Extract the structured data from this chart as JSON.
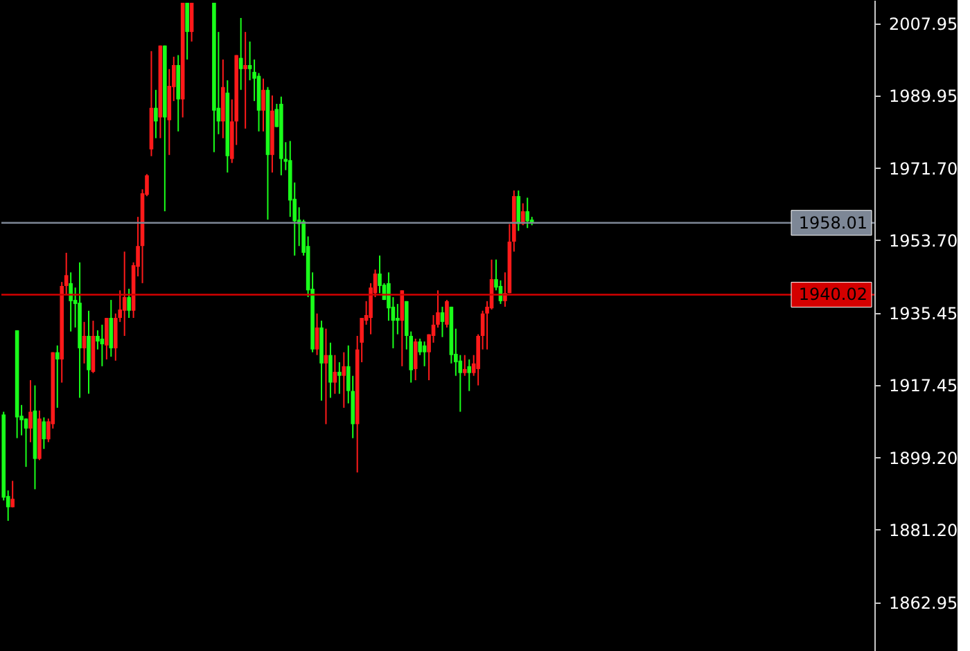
{
  "chart_data": {
    "type": "candlestick",
    "categories": [
      null,
      null,
      null,
      null,
      null,
      null,
      null,
      null,
      null,
      null,
      null,
      null,
      null,
      null,
      null,
      null,
      null,
      null,
      null,
      null,
      null,
      null,
      null,
      null,
      null,
      null,
      null,
      null,
      null,
      null,
      null,
      null,
      null,
      null,
      null,
      null,
      null,
      null,
      null,
      null,
      null,
      null,
      null,
      null,
      null,
      null,
      null,
      null,
      null,
      null,
      null,
      null,
      null,
      null,
      null,
      null,
      null,
      null,
      null,
      null,
      null,
      null,
      null,
      null,
      null,
      null,
      null,
      null,
      null,
      null,
      null,
      null,
      null,
      null,
      null,
      null,
      null,
      null,
      null,
      null,
      null,
      null,
      null,
      null,
      null,
      null,
      null,
      null,
      null,
      null,
      null,
      null,
      null,
      null,
      null,
      null,
      null,
      null,
      null,
      null,
      null,
      null,
      null,
      null,
      null,
      null,
      null,
      null,
      null,
      null,
      null,
      null,
      null,
      null,
      null,
      null,
      null,
      null,
      null,
      null,
      null,
      null,
      null,
      null,
      null,
      null,
      null,
      null,
      null,
      null,
      null,
      null,
      null,
      null,
      null,
      null,
      null,
      null,
      null,
      null,
      null,
      null,
      null,
      null,
      null,
      null,
      null,
      null,
      null,
      null,
      null,
      null,
      null,
      null,
      null,
      null,
      null,
      null,
      null,
      null,
      null,
      null,
      null,
      null,
      null,
      null,
      null,
      null,
      null,
      null,
      null,
      null,
      null,
      null,
      null,
      null,
      null,
      null,
      null,
      null,
      null,
      null,
      null,
      null,
      null,
      null,
      null,
      null,
      null,
      null,
      null,
      null,
      null,
      null,
      null
    ],
    "ohlc": [
      [
        1910.0,
        1910.7,
        1888.5,
        1889.2
      ],
      [
        1889.6,
        1891.0,
        1883.4,
        1886.8
      ],
      [
        1886.8,
        1893.4,
        1886.8,
        1888.9
      ],
      [
        1931.1,
        1931.1,
        1904.1,
        1909.3
      ],
      [
        1909.7,
        1912.4,
        1904.8,
        1908.6
      ],
      [
        1909.0,
        1909.0,
        1896.9,
        1906.5
      ],
      [
        1906.5,
        1918.6,
        1903.1,
        1910.7
      ],
      [
        1911.0,
        1917.3,
        1891.3,
        1898.9
      ],
      [
        1898.9,
        1911.0,
        1898.6,
        1909.0
      ],
      [
        1908.3,
        1909.3,
        1901.4,
        1903.8
      ],
      [
        1903.8,
        1909.0,
        1903.1,
        1908.3
      ],
      [
        1907.6,
        1925.6,
        1906.5,
        1925.6
      ],
      [
        1925.6,
        1927.3,
        1911.7,
        1923.8
      ],
      [
        1923.8,
        1943.2,
        1918.0,
        1942.2
      ],
      [
        1942.2,
        1950.5,
        1940.1,
        1944.9
      ],
      [
        1942.9,
        1945.6,
        1930.8,
        1938.4
      ],
      [
        1938.7,
        1941.8,
        1931.8,
        1937.7
      ],
      [
        1938.0,
        1948.1,
        1914.2,
        1926.6
      ],
      [
        1926.6,
        1933.2,
        1922.8,
        1929.7
      ],
      [
        1929.7,
        1936.0,
        1915.2,
        1921.1
      ],
      [
        1920.7,
        1933.5,
        1920.4,
        1929.7
      ],
      [
        1929.7,
        1931.1,
        1926.3,
        1928.3
      ],
      [
        1929.0,
        1932.5,
        1922.1,
        1927.6
      ],
      [
        1927.3,
        1934.2,
        1923.8,
        1934.2
      ],
      [
        1934.2,
        1938.7,
        1924.5,
        1926.6
      ],
      [
        1926.6,
        1935.3,
        1923.5,
        1934.2
      ],
      [
        1934.2,
        1941.1,
        1933.2,
        1936.3
      ],
      [
        1936.0,
        1950.8,
        1929.7,
        1939.4
      ],
      [
        1939.4,
        1941.5,
        1934.2,
        1936.0
      ],
      [
        1936.0,
        1948.1,
        1934.2,
        1947.4
      ],
      [
        1947.0,
        1959.5,
        1944.6,
        1952.2
      ],
      [
        1952.2,
        1966.4,
        1942.9,
        1965.4
      ],
      [
        1965.0,
        1970.2,
        1964.7,
        1969.9
      ],
      [
        1976.4,
        2001.0,
        1974.7,
        1986.8
      ],
      [
        1986.8,
        1991.3,
        1979.2,
        1983.4
      ],
      [
        1984.4,
        2002.4,
        1979.2,
        2002.4
      ],
      [
        2002.4,
        2002.4,
        1960.9,
        1984.4
      ],
      [
        1983.7,
        1996.5,
        1975.0,
        1992.3
      ],
      [
        1992.0,
        1999.6,
        1988.5,
        1997.5
      ],
      [
        1997.5,
        2000.0,
        1980.9,
        1988.9
      ],
      [
        1988.9,
        2013.1,
        1984.4,
        2013.1
      ],
      [
        2013.1,
        2013.1,
        1998.9,
        2005.8
      ],
      [
        2005.8,
        2013.1,
        2003.4,
        2013.1
      ],
      null,
      null,
      null,
      null,
      [
        2013.1,
        2013.1,
        1975.7,
        1986.1
      ],
      [
        1986.8,
        2005.8,
        1980.2,
        1983.4
      ],
      [
        1983.4,
        1998.9,
        1979.2,
        1992.0
      ],
      [
        1990.6,
        1993.7,
        1970.6,
        1974.7
      ],
      [
        1974.0,
        1988.9,
        1973.0,
        1983.4
      ],
      [
        1983.4,
        2000.0,
        1977.5,
        2000.0
      ],
      [
        1999.3,
        2009.3,
        1991.3,
        1996.5
      ],
      [
        1996.5,
        2005.8,
        1981.6,
        1997.5
      ],
      [
        1997.5,
        2003.4,
        1993.7,
        1996.5
      ],
      [
        1995.8,
        1998.9,
        1988.5,
        1994.1
      ],
      [
        1994.8,
        1995.5,
        1980.9,
        1986.1
      ],
      [
        1986.1,
        1994.1,
        1980.9,
        1991.3
      ],
      [
        1991.3,
        1992.0,
        1958.8,
        1975.0
      ],
      [
        1975.0,
        1989.9,
        1970.6,
        1986.1
      ],
      [
        1986.5,
        1987.8,
        1982.0,
        1982.0
      ],
      [
        1987.8,
        1989.6,
        1969.9,
        1974.0
      ],
      [
        1974.0,
        1978.2,
        1971.2,
        1973.3
      ],
      [
        1973.7,
        1978.5,
        1959.5,
        1963.6
      ],
      [
        1964.0,
        1968.1,
        1949.8,
        1958.4
      ],
      [
        1958.8,
        1961.9,
        1952.2,
        1957.7
      ],
      [
        1958.4,
        1958.8,
        1949.8,
        1950.5
      ],
      [
        1952.2,
        1954.6,
        1939.4,
        1941.1
      ],
      [
        1941.5,
        1945.6,
        1925.6,
        1926.3
      ],
      [
        1926.3,
        1935.3,
        1924.9,
        1931.8
      ],
      [
        1931.8,
        1933.5,
        1913.5,
        1922.8
      ],
      [
        1922.8,
        1931.5,
        1907.6,
        1924.9
      ],
      [
        1924.9,
        1928.0,
        1914.2,
        1918.0
      ],
      [
        1918.0,
        1924.9,
        1915.2,
        1920.7
      ],
      [
        1920.7,
        1923.1,
        1915.2,
        1919.7
      ],
      [
        1919.7,
        1925.6,
        1911.7,
        1922.1
      ],
      [
        1922.1,
        1927.3,
        1912.8,
        1915.9
      ],
      [
        1915.9,
        1919.7,
        1904.1,
        1907.6
      ],
      [
        1907.6,
        1929.7,
        1895.5,
        1926.3
      ],
      [
        1928.0,
        1934.2,
        1923.1,
        1934.2
      ],
      [
        1933.5,
        1938.4,
        1932.5,
        1934.9
      ],
      [
        1934.2,
        1942.9,
        1930.1,
        1941.8
      ],
      [
        1940.4,
        1946.3,
        1939.4,
        1945.3
      ],
      [
        1945.3,
        1949.8,
        1940.4,
        1942.2
      ],
      [
        1942.5,
        1942.9,
        1938.7,
        1938.7
      ],
      [
        1942.9,
        1945.6,
        1933.5,
        1936.6
      ],
      [
        1937.0,
        1939.4,
        1926.6,
        1933.5
      ],
      [
        1934.2,
        1937.7,
        1930.1,
        1933.5
      ],
      [
        1933.5,
        1941.1,
        1922.1,
        1941.1
      ],
      [
        1938.4,
        1938.4,
        1926.3,
        1929.7
      ],
      [
        1929.7,
        1930.8,
        1918.0,
        1921.1
      ],
      [
        1921.4,
        1929.0,
        1918.6,
        1928.3
      ],
      [
        1928.3,
        1929.0,
        1924.9,
        1925.6
      ],
      [
        1927.3,
        1928.3,
        1922.1,
        1925.6
      ],
      [
        1925.6,
        1930.1,
        1918.6,
        1930.1
      ],
      [
        1929.7,
        1934.9,
        1928.0,
        1932.5
      ],
      [
        1932.5,
        1941.1,
        1931.8,
        1935.6
      ],
      [
        1935.6,
        1937.0,
        1929.4,
        1933.2
      ],
      [
        1932.5,
        1938.7,
        1931.8,
        1938.4
      ],
      [
        1937.0,
        1937.0,
        1922.8,
        1924.9
      ],
      [
        1925.2,
        1931.5,
        1919.7,
        1923.1
      ],
      [
        1923.5,
        1924.9,
        1910.7,
        1920.4
      ],
      [
        1920.4,
        1924.9,
        1919.7,
        1921.4
      ],
      [
        1922.1,
        1923.8,
        1915.9,
        1920.4
      ],
      [
        1920.4,
        1924.9,
        1919.7,
        1922.8
      ],
      [
        1921.4,
        1930.1,
        1917.3,
        1929.7
      ],
      [
        1929.7,
        1936.0,
        1926.3,
        1935.3
      ],
      [
        1935.3,
        1938.4,
        1926.3,
        1937.0
      ],
      [
        1936.6,
        1948.8,
        1936.3,
        1943.9
      ],
      [
        1943.9,
        1948.8,
        1941.1,
        1941.8
      ],
      [
        1942.2,
        1943.6,
        1937.7,
        1938.4
      ],
      [
        1938.4,
        1945.6,
        1937.0,
        1940.4
      ],
      [
        1940.4,
        1957.7,
        1940.4,
        1953.3
      ],
      [
        1953.3,
        1966.1,
        1950.8,
        1964.7
      ],
      [
        1964.7,
        1966.1,
        1956.0,
        1957.7
      ],
      [
        1957.7,
        1962.9,
        1957.4,
        1960.9
      ],
      [
        1960.9,
        1964.3,
        1956.7,
        1958.4
      ],
      [
        1958.8,
        1959.5,
        1957.4,
        1958.0
      ],
      null,
      null,
      null,
      null,
      null,
      null,
      null,
      null,
      null,
      null,
      null,
      null,
      null,
      null,
      null,
      null,
      null,
      null,
      null,
      null,
      null,
      null,
      null,
      null,
      null,
      null,
      null,
      null,
      null,
      null,
      null,
      null,
      null,
      null,
      null,
      null,
      null,
      null,
      null,
      null,
      null,
      null,
      null,
      null,
      null,
      null,
      null,
      null,
      null,
      null,
      null,
      null,
      null,
      null,
      null,
      null,
      null,
      null,
      null,
      null,
      null,
      null,
      null,
      null,
      null,
      null,
      null,
      null,
      null,
      null,
      null,
      null,
      null,
      null,
      null,
      null
    ],
    "ylim": [
      1850.8,
      2013.8
    ],
    "yticks": [
      2007.95,
      1989.95,
      {
        "value": 1971.7,
        "label": "1971.70"
      },
      {
        "value": 1953.7,
        "label": "1953.70"
      },
      1935.45,
      1917.45,
      {
        "value": 1899.2,
        "label": "1899.20"
      },
      {
        "value": 1881.2,
        "label": "1881.20"
      },
      1862.95
    ],
    "tick_labels": "y",
    "ref_lines": [
      {
        "axis": "y",
        "value": 1958.01,
        "label": "1958.01",
        "color": "#7d8796"
      },
      {
        "axis": "y",
        "value": 1940.02,
        "label": "1940.02",
        "color": "#d40000"
      }
    ]
  }
}
